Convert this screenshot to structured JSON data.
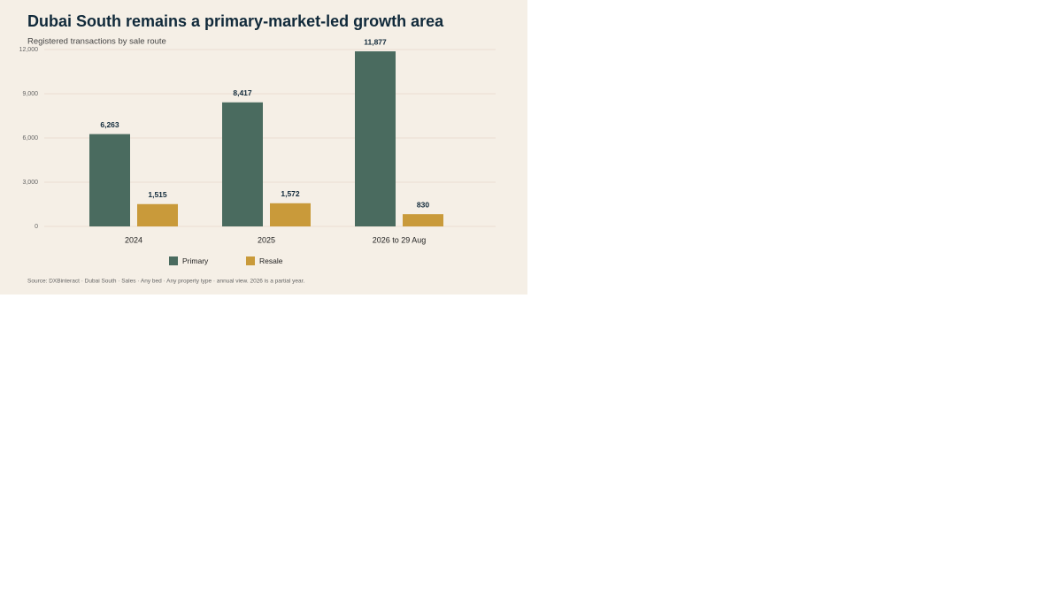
{
  "chart_data": {
    "type": "bar",
    "title": "Dubai South remains a primary-market-led growth area",
    "subtitle": "Registered transactions by sale route",
    "source": "Source: DXBinteract · Dubai South · Sales · Any bed · Any property type · annual view. 2026 is a partial year.",
    "categories": [
      "2024",
      "2025",
      "2026 to 29 Aug"
    ],
    "series": [
      {
        "name": "Primary",
        "color": "#4a6b5f",
        "values": [
          6263,
          8417,
          11877
        ],
        "value_labels": [
          "6,263",
          "8,417",
          "11,877"
        ]
      },
      {
        "name": "Resale",
        "color": "#c99a3a",
        "values": [
          1515,
          1572,
          830
        ],
        "value_labels": [
          "1,515",
          "1,572",
          "830"
        ]
      }
    ],
    "ylim": [
      0,
      12000
    ],
    "yticks": [
      0,
      {
        "value": 3000,
        "label": "3,000"
      },
      {
        "value": 6000,
        "label": "6,000"
      },
      {
        "value": 9000,
        "label": "9,000"
      },
      {
        "value": 12000,
        "label": "12,000"
      }
    ],
    "grid": true,
    "legend": "bottom"
  }
}
